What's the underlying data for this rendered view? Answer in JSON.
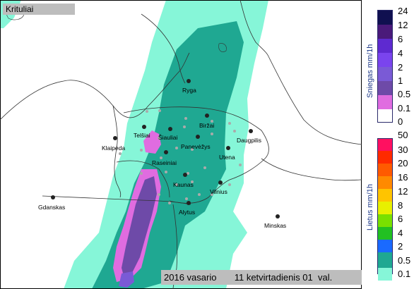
{
  "title": "Krituliai",
  "date_text": "2016 vasario       11 ketvirtadienis 01  val.",
  "snow_legend": {
    "title": "Sniegas mm/1h",
    "labels": [
      "24",
      "12",
      "6",
      "4",
      "2",
      "1",
      "0.5",
      "0.1",
      "0"
    ],
    "colors": [
      "#101050",
      "#4a1a7a",
      "#5e2ad0",
      "#7a44ee",
      "#7a5ad6",
      "#6e4aa8",
      "#e06ce0",
      "#ffffff"
    ]
  },
  "rain_legend": {
    "title": "Lietus mm/1h",
    "labels": [
      "50",
      "30",
      "20",
      "16",
      "12",
      "8",
      "6",
      "4",
      "2",
      "0.5",
      "0.1"
    ],
    "colors": [
      "#ff1060",
      "#ff2a00",
      "#ff5a00",
      "#ff8a00",
      "#ffc400",
      "#e8f000",
      "#7ae000",
      "#22c022",
      "#1a6aff",
      "#1fa892",
      "#86f6d8"
    ]
  },
  "cities": [
    {
      "name": "Ryga"
    },
    {
      "name": "Biržai"
    },
    {
      "name": "Telšiai"
    },
    {
      "name": "Šiauliai"
    },
    {
      "name": "Panevėžys"
    },
    {
      "name": "Daugpilis"
    },
    {
      "name": "Klaipėda"
    },
    {
      "name": "Utena"
    },
    {
      "name": "Raseiniai"
    },
    {
      "name": "Kaunas"
    },
    {
      "name": "Vilnius"
    },
    {
      "name": "Alytus"
    },
    {
      "name": "Gdanskas"
    },
    {
      "name": "Minskas"
    }
  ]
}
